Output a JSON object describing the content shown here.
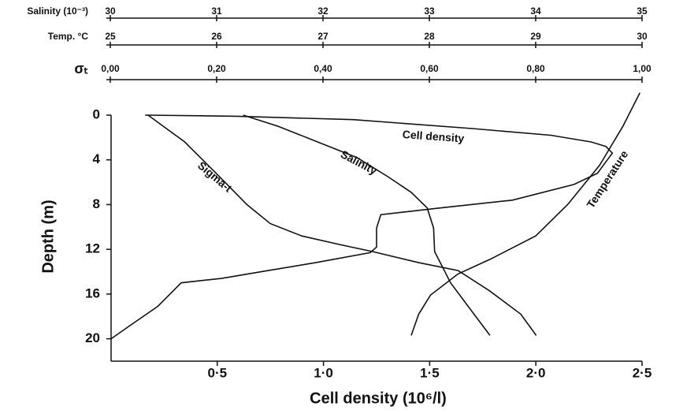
{
  "chart_data": {
    "type": "line",
    "xlabel": "Cell density (10⁶/l)",
    "ylabel": "Depth (m)",
    "xlim": [
      0,
      2.5
    ],
    "xticks": [
      {
        "value": 0.5,
        "label": "0·5"
      },
      {
        "value": 1.0,
        "label": "1·0"
      },
      {
        "value": 1.5,
        "label": "1·5"
      },
      {
        "value": 2.0,
        "label": "2·0"
      },
      {
        "value": 2.5,
        "label": "2·5"
      }
    ],
    "ylim": [
      0,
      22
    ],
    "yticks": [
      0,
      4,
      8,
      12,
      16,
      20
    ],
    "y_inverted": true,
    "color": "#111111",
    "top_axes": [
      {
        "label": "Salinity (10⁻³)",
        "lim": [
          30,
          35
        ],
        "ticks": [
          30,
          31,
          32,
          33,
          34,
          35
        ]
      },
      {
        "label": "Temp. °C",
        "lim": [
          25,
          30
        ],
        "ticks": [
          25,
          26,
          27,
          28,
          29,
          30
        ]
      },
      {
        "label": "σₜ",
        "lim": [
          0,
          1
        ],
        "ticks": [
          {
            "value": 0,
            "label": "0,00"
          },
          {
            "value": 0.2,
            "label": "0,20"
          },
          {
            "value": 0.4,
            "label": "0,40"
          },
          {
            "value": 0.6,
            "label": "0,60"
          },
          {
            "value": 0.8,
            "label": "0,80"
          },
          {
            "value": 1.0,
            "label": "1,00"
          }
        ]
      }
    ],
    "series": [
      {
        "name": "Cell density",
        "x": [
          0.16,
          0.59,
          1.14,
          1.7,
          2.07,
          2.26,
          2.33,
          2.36,
          2.29,
          2.18,
          1.89,
          1.55,
          1.27,
          1.25,
          1.25,
          1.22,
          0.96,
          0.74,
          0.52,
          0.42,
          0.33,
          0.22,
          0.09,
          0
        ],
        "values": [
          0,
          0.1,
          0.4,
          1.2,
          1.8,
          2.4,
          2.8,
          3.4,
          5.2,
          6.2,
          7.6,
          8.3,
          8.9,
          10.1,
          11.8,
          12.3,
          13.2,
          13.9,
          14.6,
          14.8,
          15.0,
          17.1,
          18.8,
          20
        ]
      },
      {
        "name": "Salinity",
        "axis": 0,
        "x": [
          31.25,
          31.58,
          31.95,
          32.32,
          32.61,
          32.83,
          32.98,
          33.04,
          33.05,
          33.2,
          33.42,
          33.57
        ],
        "values": [
          0,
          1.0,
          2.4,
          3.8,
          5.5,
          6.9,
          8.3,
          10.1,
          12.2,
          15.0,
          17.8,
          19.7
        ]
      },
      {
        "name": "Temperature",
        "axis": 1,
        "x": [
          29.98,
          29.82,
          29.6,
          29.3,
          29.0,
          28.57,
          28.27,
          28.01,
          27.9,
          27.83
        ],
        "values": [
          -2.0,
          1.0,
          4.5,
          8.0,
          10.8,
          12.9,
          14.2,
          16.1,
          17.8,
          19.7
        ]
      },
      {
        "name": "Sigma-t",
        "axis": 2,
        "x": [
          0.071,
          0.14,
          0.199,
          0.257,
          0.301,
          0.36,
          0.434,
          0.493,
          0.581,
          0.654,
          0.713,
          0.772,
          0.801
        ],
        "values": [
          0,
          2.4,
          5.2,
          8.0,
          9.7,
          10.8,
          11.6,
          12.2,
          13.2,
          13.9,
          15.7,
          17.8,
          19.7
        ]
      }
    ]
  }
}
